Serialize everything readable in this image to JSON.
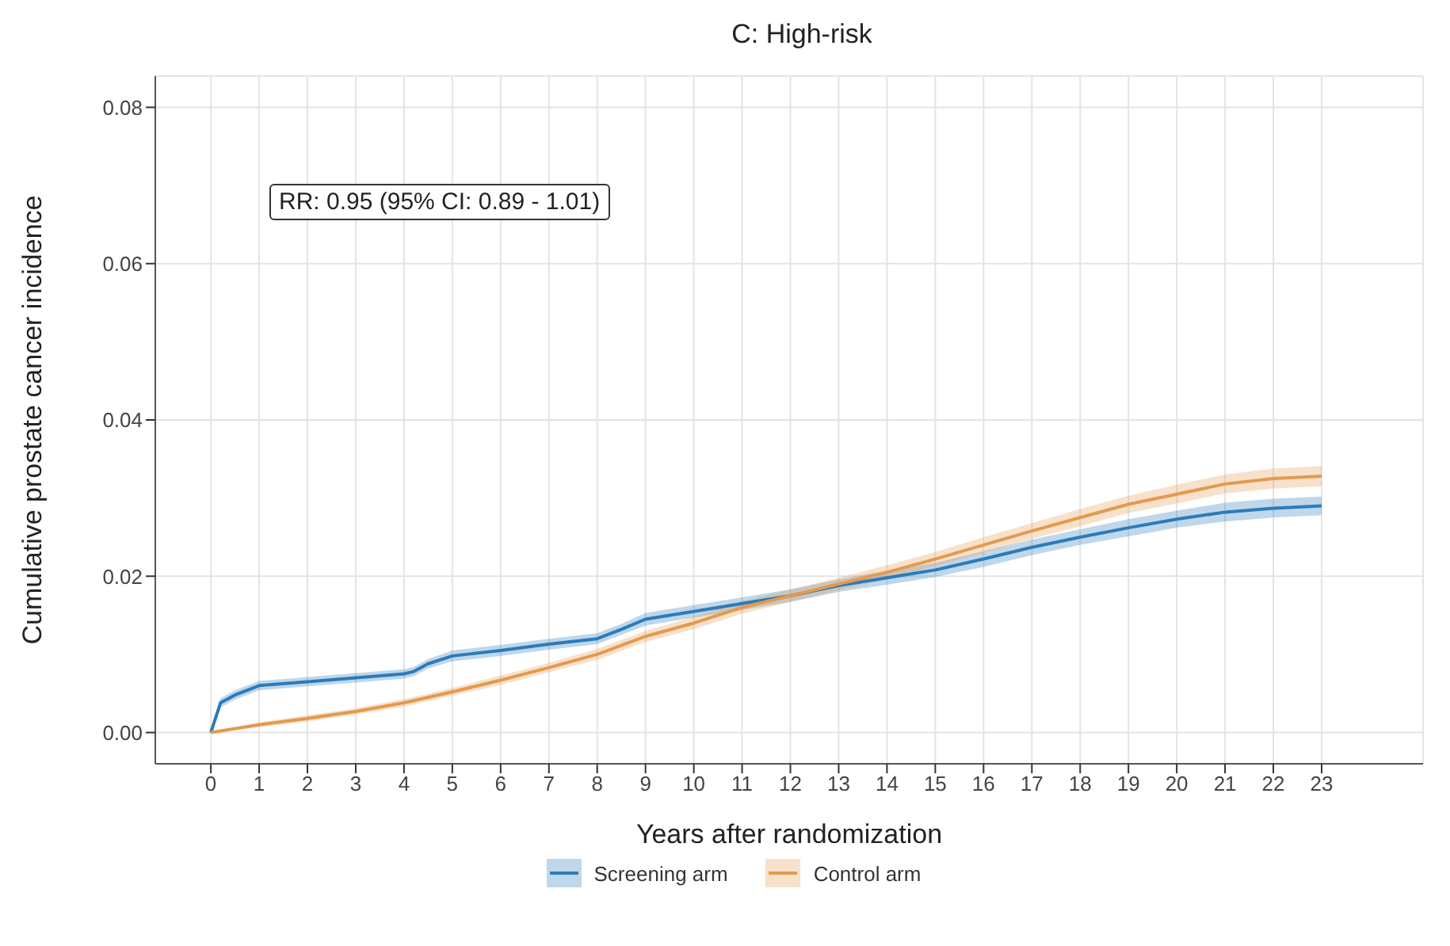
{
  "chart_data": {
    "type": "line",
    "title": "C: High-risk",
    "xlabel": "Years after randomization",
    "ylabel": "Cumulative prostate cancer incidence",
    "annotations": [
      "RR: 0.95 (95% CI: 0.89 - 1.01)"
    ],
    "xlim": [
      -1.15,
      25.1
    ],
    "xticks": [
      0,
      1,
      2,
      3,
      4,
      5,
      6,
      7,
      8,
      9,
      10,
      11,
      12,
      13,
      14,
      15,
      16,
      17,
      18,
      19,
      20,
      21,
      22,
      23
    ],
    "ylim": [
      -0.004,
      0.084
    ],
    "yticks": [
      {
        "value": 0,
        "label": "0.00"
      },
      0.02,
      0.04,
      0.06,
      0.08
    ],
    "grid": true,
    "legend": "bottom",
    "marker": "none",
    "line_style": "solid",
    "series": [
      {
        "name": "Screening arm",
        "color": "#2b7bba",
        "x": [
          0,
          0.2,
          0.5,
          1,
          2,
          3,
          4,
          4.2,
          4.5,
          5,
          6,
          7,
          8,
          8.5,
          9,
          10,
          11,
          12,
          13,
          14,
          15,
          16,
          17,
          18,
          19,
          20,
          21,
          22,
          23
        ],
        "values": [
          0,
          0.0038,
          0.0048,
          0.006,
          0.0065,
          0.007,
          0.0075,
          0.0078,
          0.0088,
          0.0098,
          0.0105,
          0.0113,
          0.012,
          0.0132,
          0.0145,
          0.0155,
          0.0165,
          0.0175,
          0.0188,
          0.0198,
          0.0208,
          0.0222,
          0.0237,
          0.025,
          0.0262,
          0.0273,
          0.0282,
          0.0287,
          0.029
        ],
        "lower": [
          0,
          0.0032,
          0.0042,
          0.0054,
          0.0059,
          0.0064,
          0.0069,
          0.0072,
          0.0082,
          0.0091,
          0.0098,
          0.0106,
          0.0113,
          0.0125,
          0.0137,
          0.0147,
          0.0157,
          0.0167,
          0.018,
          0.0189,
          0.0199,
          0.0212,
          0.0227,
          0.024,
          0.0251,
          0.0262,
          0.027,
          0.0275,
          0.0278
        ],
        "upper": [
          0,
          0.0044,
          0.0054,
          0.0066,
          0.0071,
          0.0076,
          0.0081,
          0.0084,
          0.0094,
          0.0105,
          0.0112,
          0.012,
          0.0127,
          0.0139,
          0.0153,
          0.0163,
          0.0173,
          0.0183,
          0.0196,
          0.0207,
          0.0217,
          0.0232,
          0.0247,
          0.026,
          0.0273,
          0.0284,
          0.0294,
          0.0299,
          0.0302
        ]
      },
      {
        "name": "Control arm",
        "color": "#e39a4f",
        "x": [
          0,
          1,
          2,
          3,
          4,
          5,
          6,
          7,
          8,
          9,
          10,
          11,
          12,
          13,
          14,
          15,
          16,
          17,
          18,
          19,
          20,
          21,
          22,
          23
        ],
        "values": [
          0,
          0.001,
          0.0018,
          0.0027,
          0.0038,
          0.0052,
          0.0067,
          0.0083,
          0.01,
          0.0123,
          0.014,
          0.016,
          0.0175,
          0.019,
          0.0205,
          0.0222,
          0.024,
          0.0258,
          0.0275,
          0.0292,
          0.0305,
          0.0318,
          0.0325,
          0.0328
        ],
        "lower": [
          0,
          0.0007,
          0.0014,
          0.0023,
          0.0033,
          0.0047,
          0.0061,
          0.0077,
          0.0093,
          0.0116,
          0.0132,
          0.0152,
          0.0167,
          0.0182,
          0.0196,
          0.0213,
          0.023,
          0.0248,
          0.0264,
          0.0281,
          0.0293,
          0.0306,
          0.0312,
          0.0315
        ],
        "upper": [
          0,
          0.0013,
          0.0022,
          0.0031,
          0.0043,
          0.0057,
          0.0073,
          0.0089,
          0.0107,
          0.013,
          0.0148,
          0.0168,
          0.0183,
          0.0198,
          0.0214,
          0.0231,
          0.025,
          0.0268,
          0.0286,
          0.0303,
          0.0317,
          0.033,
          0.0338,
          0.0341
        ]
      }
    ]
  }
}
